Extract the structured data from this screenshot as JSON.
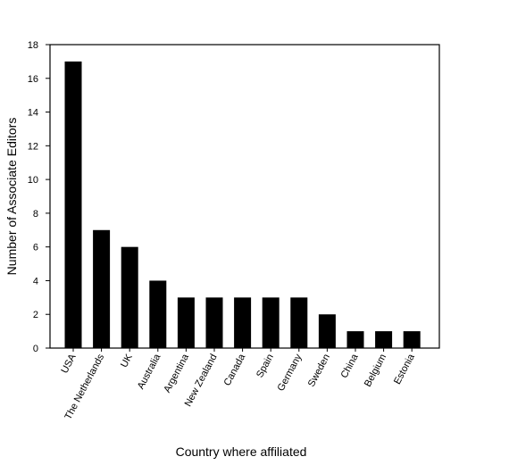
{
  "chart_data": {
    "type": "bar",
    "categories": [
      "USA",
      "The Netherlands",
      "UK",
      "Australia",
      "Argentina",
      "New Zealand",
      "Canada",
      "Spain",
      "Germany",
      "Sweden",
      "China",
      "Belgium",
      "Estonia"
    ],
    "values": [
      17,
      7,
      6,
      4,
      3,
      3,
      3,
      3,
      3,
      2,
      1,
      1,
      1
    ],
    "title": "",
    "xlabel": "Country where affiliated",
    "ylabel": "Number of Associate Editors",
    "ylim": [
      0,
      18
    ],
    "yticks": [
      0,
      2,
      4,
      6,
      8,
      10,
      12,
      14,
      16,
      18
    ],
    "grid": false,
    "legend": "none",
    "bar_color": "#000000"
  }
}
